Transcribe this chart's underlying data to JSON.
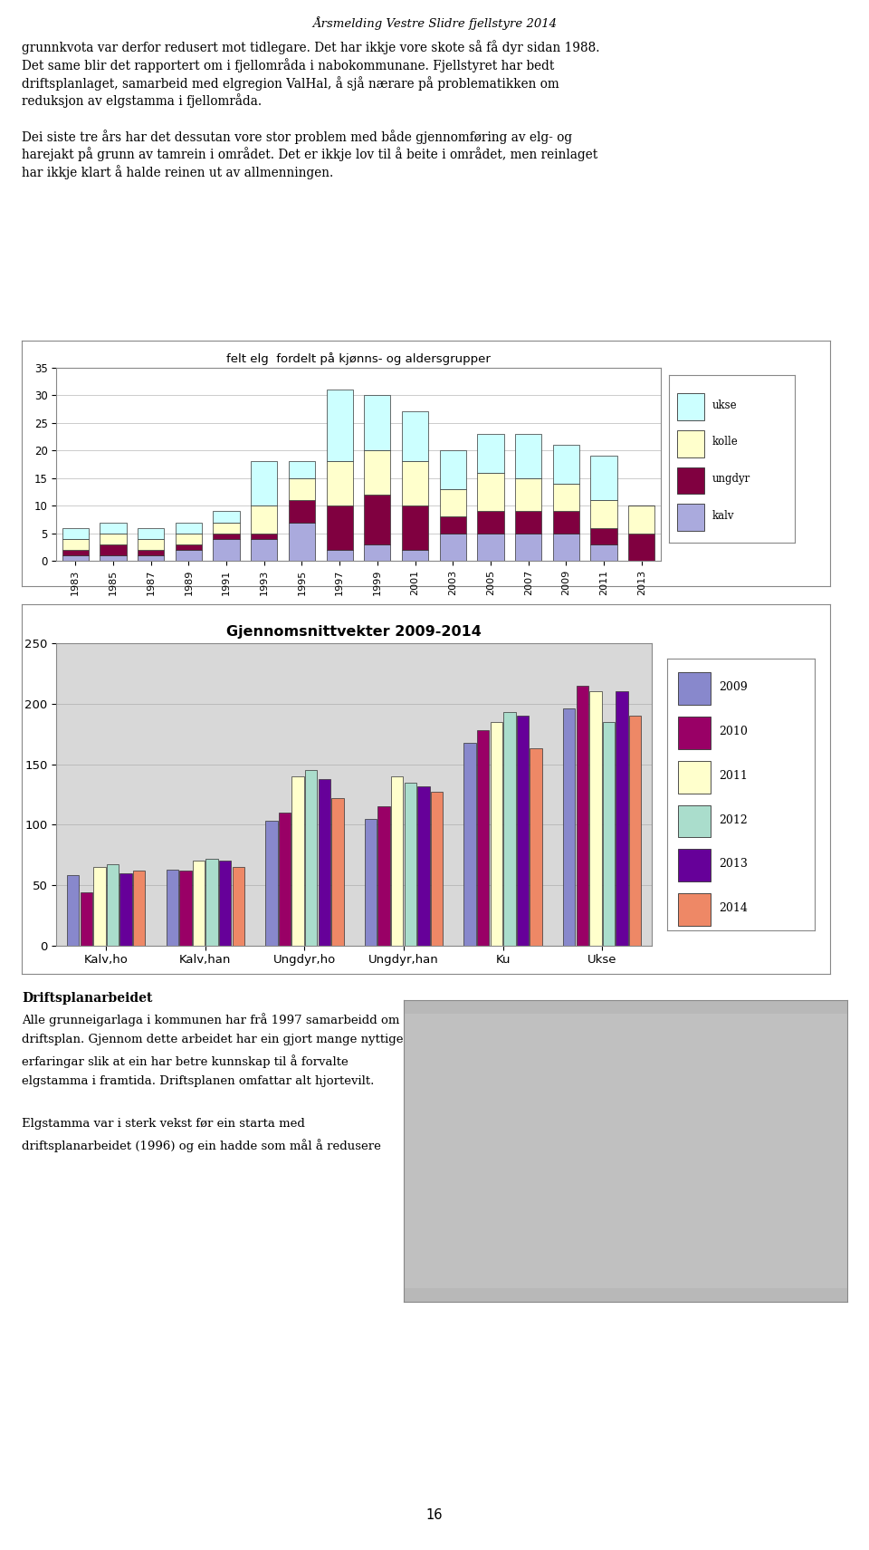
{
  "page_title": "Årsmelding Vestre Slidre fjellstyre 2014",
  "page_number": "16",
  "text1": [
    "grunnkvota var derfor redusert mot tidlegare. Det har ikkje vore skote så få dyr sidan 1988.",
    "Det same blir det rapportert om i fjellområda i nabokommunane. Fjellstyret har bedt",
    "driftsplanlaget, samarbeid med elgregion ValHal, å sjå nærare på problematikken om",
    "reduksjon av elgstamma i fjellområda.",
    "",
    "Dei siste tre års har det dessutan vore stor problem med både gjennomføring av elg- og",
    "harejakt på grunn av tamrein i området. Det er ikkje lov til å beite i området, men reinlaget",
    "har ikkje klart å halde reinen ut av allmenningen."
  ],
  "chart1_title": "felt elg  fordelt på kjønns- og aldersgrupper",
  "chart1_years": [
    1983,
    1985,
    1987,
    1989,
    1991,
    1993,
    1995,
    1997,
    1999,
    2001,
    2003,
    2005,
    2007,
    2009,
    2011,
    2013
  ],
  "chart1_kalv": [
    1,
    1,
    1,
    2,
    4,
    4,
    7,
    2,
    3,
    2,
    5,
    5,
    5,
    5,
    3,
    0
  ],
  "chart1_ungdyr": [
    1,
    2,
    1,
    1,
    1,
    1,
    4,
    8,
    9,
    8,
    3,
    4,
    4,
    4,
    3,
    5
  ],
  "chart1_kolle": [
    2,
    2,
    2,
    2,
    2,
    5,
    4,
    8,
    8,
    8,
    5,
    7,
    6,
    5,
    5,
    5
  ],
  "chart1_ukse": [
    2,
    2,
    2,
    2,
    2,
    8,
    3,
    13,
    10,
    9,
    7,
    7,
    8,
    7,
    8,
    0
  ],
  "chart1_color_kalv": "#aaaadd",
  "chart1_color_ungdyr": "#800040",
  "chart1_color_kolle": "#ffffcc",
  "chart1_color_ukse": "#ccffff",
  "chart1_ylim": [
    0,
    35
  ],
  "chart1_yticks": [
    0,
    5,
    10,
    15,
    20,
    25,
    30,
    35
  ],
  "chart2_title": "Gjennomsnittvekter 2009-2014",
  "chart2_categories": [
    "Kalv,ho",
    "Kalv,han",
    "Ungdyr,ho",
    "Ungdyr,han",
    "Ku",
    "Ukse"
  ],
  "chart2_2009": [
    58,
    63,
    103,
    105,
    168,
    196
  ],
  "chart2_2010": [
    44,
    62,
    110,
    115,
    178,
    215
  ],
  "chart2_2011": [
    65,
    70,
    140,
    140,
    185,
    210
  ],
  "chart2_2012": [
    67,
    72,
    145,
    135,
    193,
    185
  ],
  "chart2_2013": [
    60,
    70,
    138,
    132,
    190,
    210
  ],
  "chart2_2014": [
    62,
    65,
    122,
    127,
    163,
    190
  ],
  "chart2_colors": [
    "#8888cc",
    "#990066",
    "#ffffcc",
    "#aaddcc",
    "#660099",
    "#ee8866"
  ],
  "chart2_ylim": [
    0,
    250
  ],
  "chart2_yticks": [
    0,
    50,
    100,
    150,
    200,
    250
  ],
  "text2_bold": "Driftsplanarbeidet",
  "text2": [
    "Alle grunneigarlaga i kommunen har frå 1997 samarbeidd om",
    "driftsplan. Gjennom dette arbeidet har ein gjort mange nyttige",
    "erfaringar slik at ein har betre kunnskap til å forvalte",
    "elgstamma i framtida. Driftsplanen omfattar alt hjortevilt.",
    "",
    "Elgstamma var i sterk vekst før ein starta med",
    "driftsplanarbeidet (1996) og ein hadde som mål å redusere"
  ]
}
